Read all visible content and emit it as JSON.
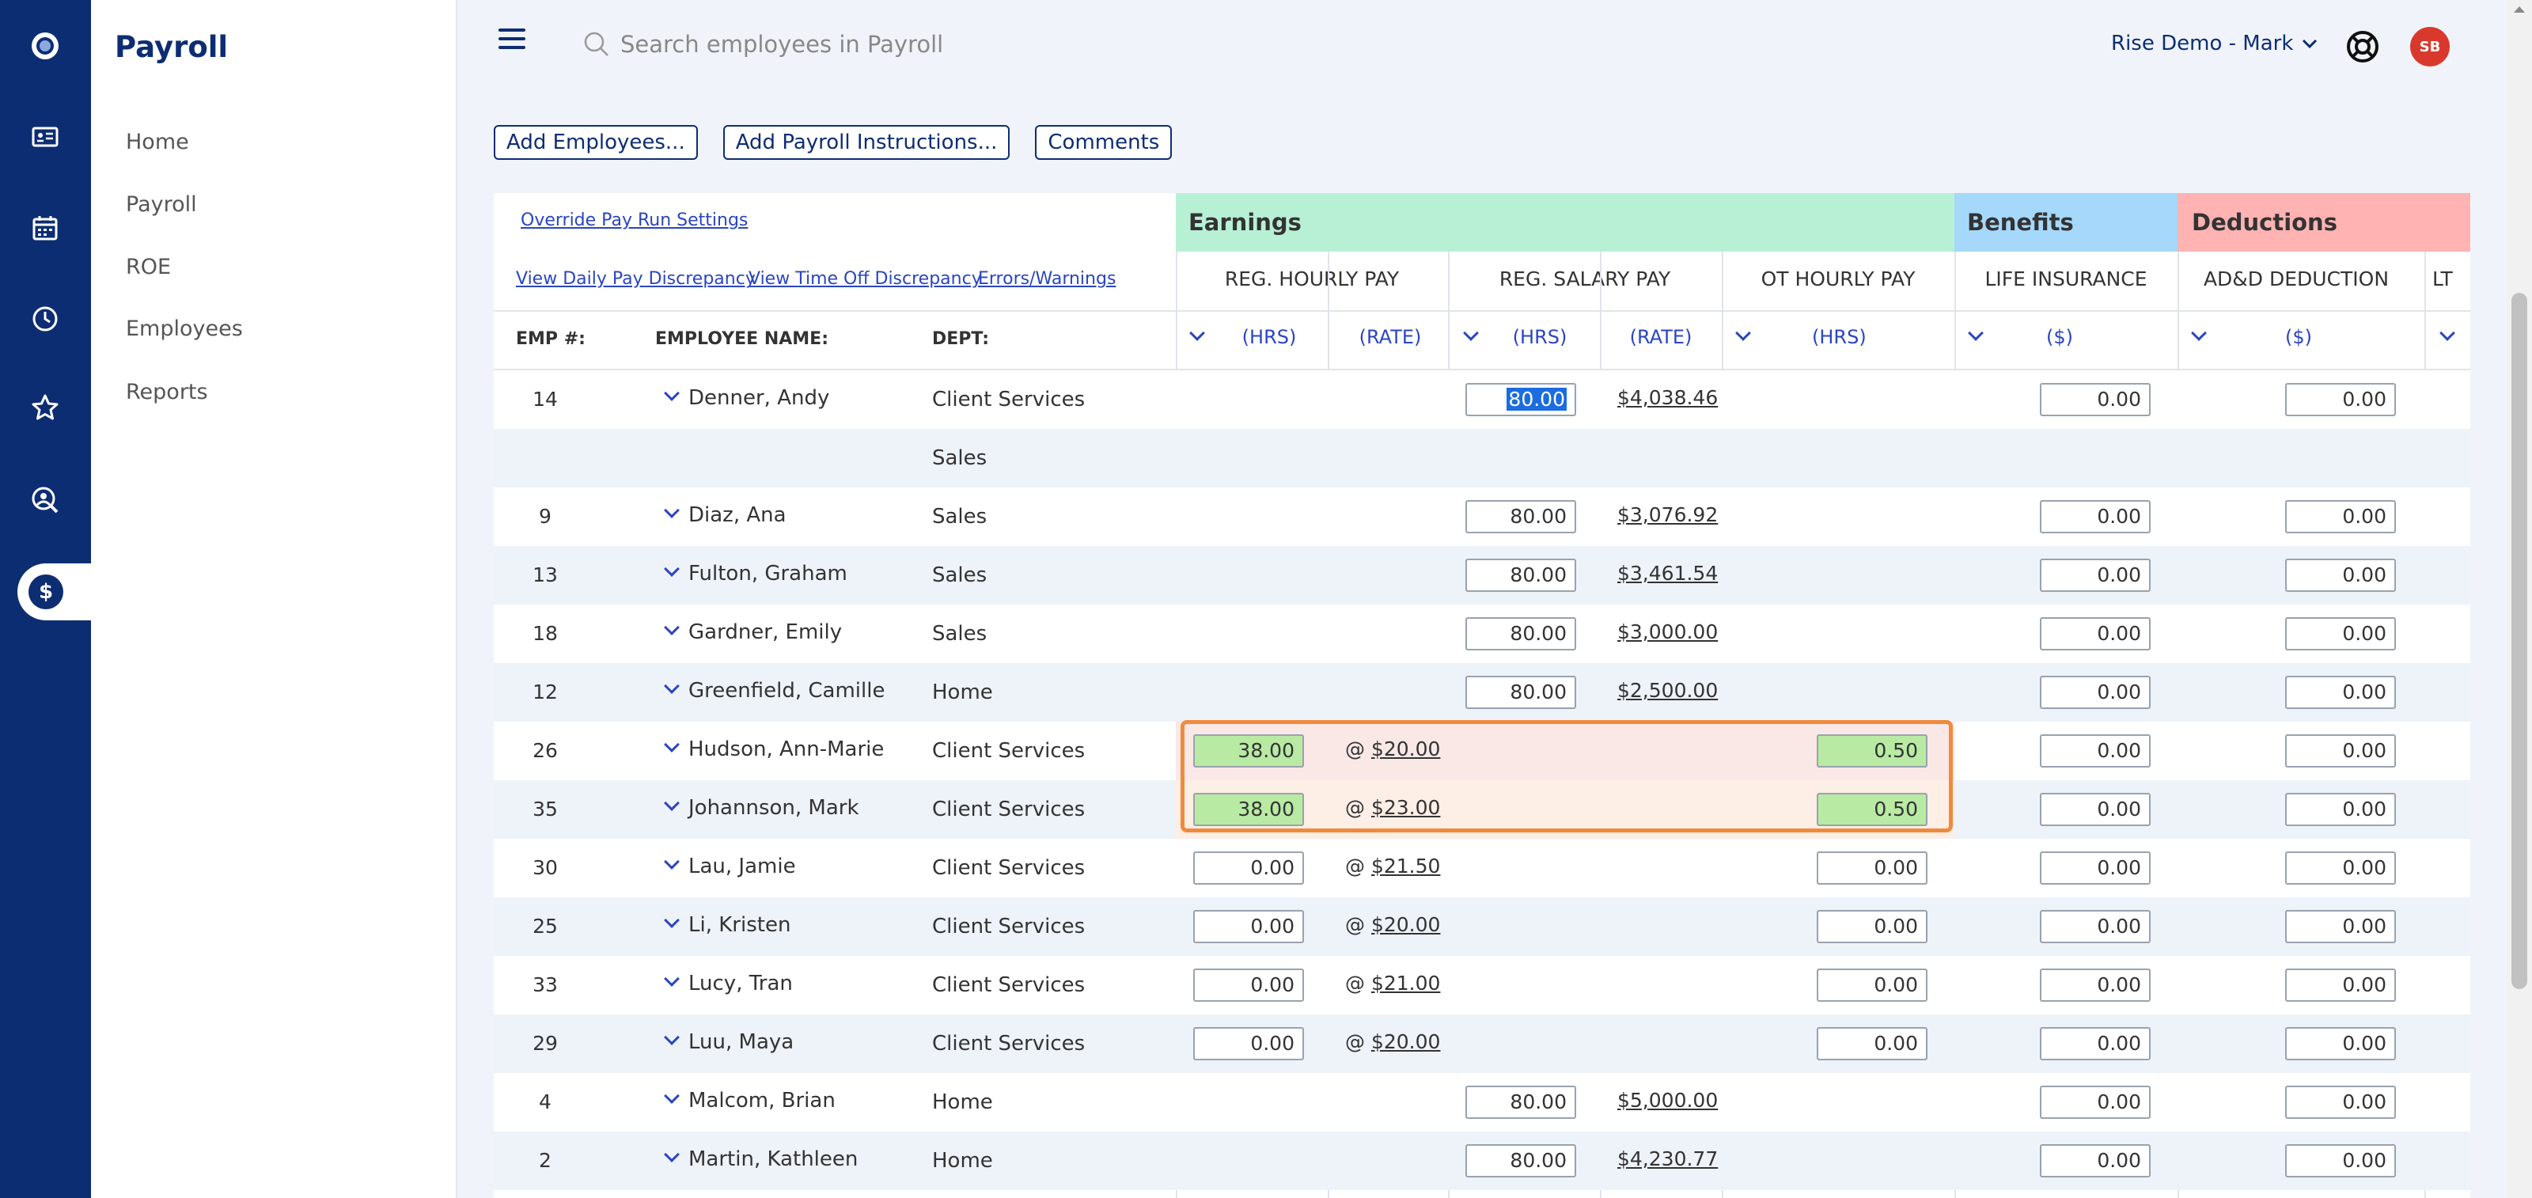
{
  "sidebar": {
    "title": "Payroll",
    "items": [
      {
        "label": "Home"
      },
      {
        "label": "Payroll"
      },
      {
        "label": "ROE"
      },
      {
        "label": "Employees"
      },
      {
        "label": "Reports"
      }
    ]
  },
  "rail": {
    "icons": [
      "logo-icon",
      "id-card-icon",
      "calendar-icon",
      "clock-icon",
      "star-icon",
      "people-search-icon",
      "dollar-icon"
    ],
    "active_glyph": "$"
  },
  "topbar": {
    "search_placeholder": "Search employees in Payroll",
    "account": "Rise Demo - Mark",
    "avatar_initials": "SB"
  },
  "actions": {
    "add_employees": "Add Employees...",
    "add_instructions": "Add Payroll Instructions...",
    "comments": "Comments"
  },
  "grid": {
    "links": {
      "override": "Override Pay Run Settings",
      "daily": "View Daily Pay Discrepancy",
      "timeoff": "View Time Off Discrepancy",
      "errors": "Errors/Warnings"
    },
    "groups": {
      "earnings": "Earnings",
      "benefits": "Benefits",
      "deductions": "Deductions"
    },
    "columns": {
      "reg_hourly": "REG. HOURLY PAY",
      "reg_salary": "REG. SALARY PAY",
      "ot_hourly": "OT HOURLY PAY",
      "life_ins": "LIFE INSURANCE",
      "add_ded": "AD&D DEDUCTION",
      "lt": "LT"
    },
    "sub": {
      "hrs": "(HRS)",
      "rate": "(RATE)",
      "dollar": "($)"
    },
    "headers": {
      "emp": "EMP #:",
      "name": "EMPLOYEE NAME:",
      "dept": "DEPT:"
    },
    "colors": {
      "earnings_bg": "#b8f0d6",
      "benefits_bg": "#a5d8fb",
      "deductions_bg": "#ffb3b3",
      "highlight": "#f08a3c",
      "green_input": "#b8eaa3"
    },
    "rows": [
      {
        "emp": "14",
        "name": "Denner, Andy",
        "dept": "Client Services",
        "type": "salary",
        "sal_hrs": "80.00",
        "sal_rate": "$4,038.46",
        "life": "0.00",
        "add": "0.00"
      },
      {
        "emp": "",
        "name": "",
        "dept": "Sales",
        "type": "blank"
      },
      {
        "emp": "9",
        "name": "Diaz, Ana",
        "dept": "Sales",
        "type": "salary",
        "sal_hrs": "80.00",
        "sal_rate": "$3,076.92",
        "life": "0.00",
        "add": "0.00"
      },
      {
        "emp": "13",
        "name": "Fulton, Graham",
        "dept": "Sales",
        "type": "salary",
        "sal_hrs": "80.00",
        "sal_rate": "$3,461.54",
        "life": "0.00",
        "add": "0.00"
      },
      {
        "emp": "18",
        "name": "Gardner, Emily",
        "dept": "Sales",
        "type": "salary",
        "sal_hrs": "80.00",
        "sal_rate": "$3,000.00",
        "life": "0.00",
        "add": "0.00"
      },
      {
        "emp": "12",
        "name": "Greenfield, Camille",
        "dept": "Home",
        "type": "salary",
        "sal_hrs": "80.00",
        "sal_rate": "$2,500.00",
        "life": "0.00",
        "add": "0.00"
      },
      {
        "emp": "26",
        "name": "Hudson, Ann-Marie",
        "dept": "Client Services",
        "type": "hourly",
        "hrs": "38.00",
        "rate": "$20.00",
        "ot": "0.50",
        "green": true,
        "life": "0.00",
        "add": "0.00"
      },
      {
        "emp": "35",
        "name": "Johannson, Mark",
        "dept": "Client Services",
        "type": "hourly",
        "hrs": "38.00",
        "rate": "$23.00",
        "ot": "0.50",
        "green": true,
        "life": "0.00",
        "add": "0.00"
      },
      {
        "emp": "30",
        "name": "Lau, Jamie",
        "dept": "Client Services",
        "type": "hourly",
        "hrs": "0.00",
        "rate": "$21.50",
        "ot": "0.00",
        "life": "0.00",
        "add": "0.00"
      },
      {
        "emp": "25",
        "name": "Li, Kristen",
        "dept": "Client Services",
        "type": "hourly",
        "hrs": "0.00",
        "rate": "$20.00",
        "ot": "0.00",
        "life": "0.00",
        "add": "0.00"
      },
      {
        "emp": "33",
        "name": "Lucy, Tran",
        "dept": "Client Services",
        "type": "hourly",
        "hrs": "0.00",
        "rate": "$21.00",
        "ot": "0.00",
        "life": "0.00",
        "add": "0.00"
      },
      {
        "emp": "29",
        "name": "Luu, Maya",
        "dept": "Client Services",
        "type": "hourly",
        "hrs": "0.00",
        "rate": "$20.00",
        "ot": "0.00",
        "life": "0.00",
        "add": "0.00"
      },
      {
        "emp": "4",
        "name": "Malcom, Brian",
        "dept": "Home",
        "type": "salary",
        "sal_hrs": "80.00",
        "sal_rate": "$5,000.00",
        "life": "0.00",
        "add": "0.00"
      },
      {
        "emp": "2",
        "name": "Martin, Kathleen",
        "dept": "Home",
        "type": "salary",
        "sal_hrs": "80.00",
        "sal_rate": "$4,230.77",
        "life": "0.00",
        "add": "0.00"
      }
    ]
  }
}
